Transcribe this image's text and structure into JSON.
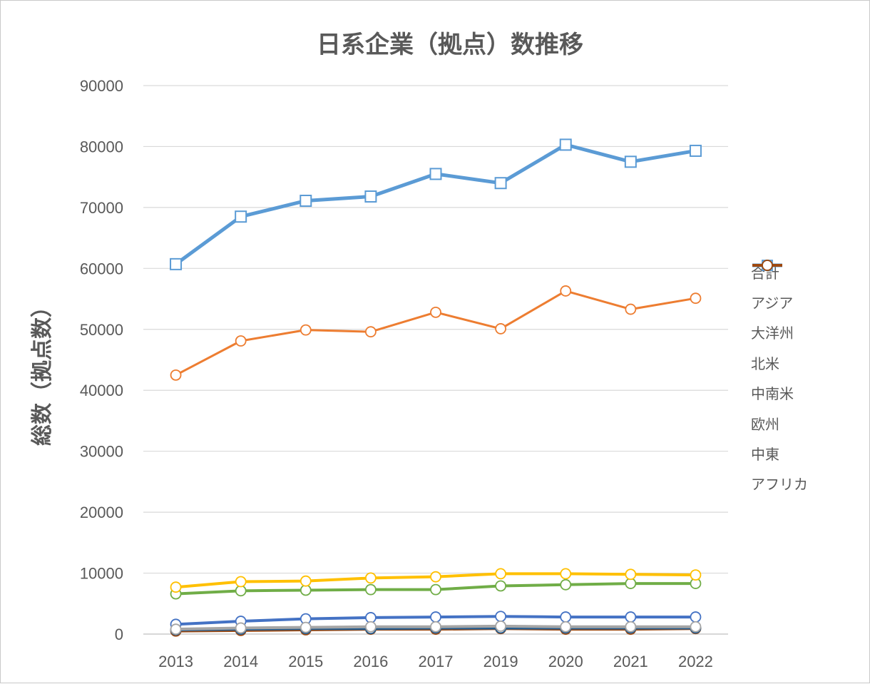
{
  "chart_data": {
    "type": "line",
    "title": "日系企業（拠点）数推移",
    "xlabel": "",
    "ylabel": "総数（拠点数）",
    "ylim": [
      0,
      90000
    ],
    "yticks": [
      "0",
      "10000",
      "20000",
      "30000",
      "40000",
      "50000",
      "60000",
      "70000",
      "80000",
      "90000"
    ],
    "categories": [
      "2013",
      "2014",
      "2015",
      "2016",
      "2017",
      "2019",
      "2020",
      "2021",
      "2022"
    ],
    "grid": true,
    "legend_position": "right",
    "series": [
      {
        "name": "合計",
        "color": "#5B9BD5",
        "marker": "square",
        "width": 5,
        "values": [
          60700,
          68500,
          71100,
          71800,
          75500,
          74000,
          80300,
          77500,
          79300
        ]
      },
      {
        "name": "アジア",
        "color": "#ED7D31",
        "marker": "circle",
        "width": 3,
        "values": [
          42500,
          48100,
          49900,
          49600,
          52800,
          50100,
          56300,
          53300,
          55100
        ]
      },
      {
        "name": "大洋州",
        "color": "#A5A5A5",
        "marker": "circle",
        "width": 4,
        "values": [
          800,
          1000,
          1100,
          1200,
          1200,
          1300,
          1200,
          1200,
          1200
        ]
      },
      {
        "name": "北米",
        "color": "#FFC000",
        "marker": "circle",
        "width": 4,
        "values": [
          7700,
          8600,
          8700,
          9200,
          9400,
          9900,
          9900,
          9800,
          9700
        ]
      },
      {
        "name": "中南米",
        "color": "#4472C4",
        "marker": "circle",
        "width": 4,
        "values": [
          1600,
          2100,
          2500,
          2700,
          2800,
          2900,
          2800,
          2800,
          2800
        ]
      },
      {
        "name": "欧州",
        "color": "#70AD47",
        "marker": "circle",
        "width": 4,
        "values": [
          6600,
          7100,
          7200,
          7300,
          7300,
          7900,
          8100,
          8300,
          8300
        ]
      },
      {
        "name": "中東",
        "color": "#255E91",
        "marker": "circle",
        "width": 4,
        "values": [
          700,
          800,
          900,
          900,
          1000,
          1000,
          1000,
          1000,
          1000
        ]
      },
      {
        "name": "アフリカ",
        "color": "#9E480E",
        "marker": "circle",
        "width": 4,
        "values": [
          500,
          600,
          700,
          800,
          800,
          900,
          800,
          800,
          900
        ]
      }
    ]
  }
}
